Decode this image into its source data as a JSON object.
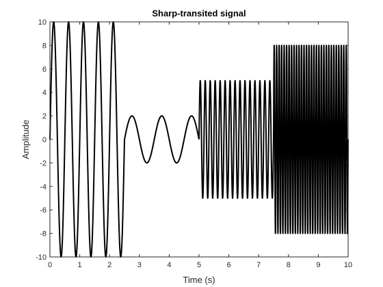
{
  "chart_data": {
    "type": "line",
    "title": "Sharp-transited signal",
    "xlabel": "Time (s)",
    "ylabel": "Amplitude",
    "xlim": [
      0,
      10
    ],
    "ylim": [
      -10,
      10
    ],
    "x_ticks": [
      0,
      1,
      2,
      3,
      4,
      5,
      6,
      7,
      8,
      9,
      10
    ],
    "y_ticks": [
      -10,
      -8,
      -6,
      -4,
      -2,
      0,
      2,
      4,
      6,
      8,
      10
    ],
    "grid": false,
    "line_color": "#000000",
    "segments": [
      {
        "t_start": 0.0,
        "t_end": 2.5,
        "amplitude": 10,
        "frequency_hz": 2
      },
      {
        "t_start": 2.5,
        "t_end": 5.0,
        "amplitude": 2,
        "frequency_hz": 1
      },
      {
        "t_start": 5.0,
        "t_end": 7.5,
        "amplitude": 5,
        "frequency_hz": 6
      },
      {
        "t_start": 7.5,
        "t_end": 10.0,
        "amplitude": 8,
        "frequency_hz": 12
      }
    ]
  }
}
